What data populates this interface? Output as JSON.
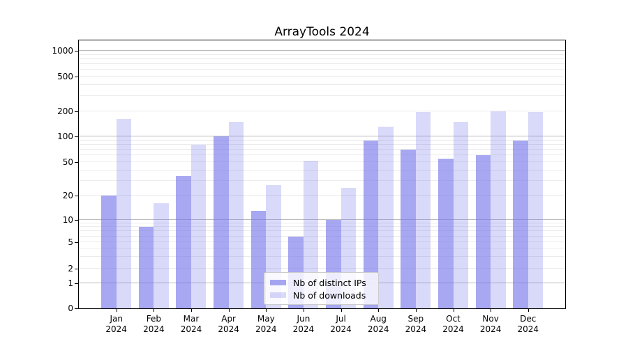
{
  "chart_data": {
    "type": "bar",
    "title": "ArrayTools 2024",
    "categories": [
      "Jan",
      "Feb",
      "Mar",
      "Apr",
      "May",
      "Jun",
      "Jul",
      "Aug",
      "Sep",
      "Oct",
      "Nov",
      "Dec"
    ],
    "category_year": "2024",
    "series": [
      {
        "name": "Nb of distinct IPs",
        "color": "rgba(115,115,235,0.63)",
        "values": [
          20,
          8,
          34,
          100,
          13,
          6,
          10,
          90,
          70,
          55,
          60,
          90
        ]
      },
      {
        "name": "Nb of downloads",
        "color": "rgba(115,115,235,0.27)",
        "values": [
          160,
          16,
          80,
          150,
          27,
          52,
          25,
          130,
          193,
          150,
          200,
          193
        ]
      }
    ],
    "y_axis": {
      "scale": "log-like (linear below 1, log above)",
      "tick_values": [
        0,
        1,
        2,
        5,
        10,
        20,
        50,
        100,
        200,
        500,
        1000
      ],
      "tick_labels": [
        "0",
        "1",
        "2",
        "5",
        "10",
        "20",
        "50",
        "100",
        "200",
        "500",
        "1000"
      ]
    },
    "x_axis": {
      "tick_labels": [
        "Jan\n2024",
        "Feb\n2024",
        "Mar\n2024",
        "Apr\n2024",
        "May\n2024",
        "Jun\n2024",
        "Jul\n2024",
        "Aug\n2024",
        "Sep\n2024",
        "Oct\n2024",
        "Nov\n2024",
        "Dec\n2024"
      ]
    },
    "legend": {
      "position": "lower center",
      "entries": [
        "Nb of distinct IPs",
        "Nb of downloads"
      ]
    },
    "grid": {
      "major_color": "#b9b9b9",
      "minor_color": "#ebebeb"
    }
  }
}
